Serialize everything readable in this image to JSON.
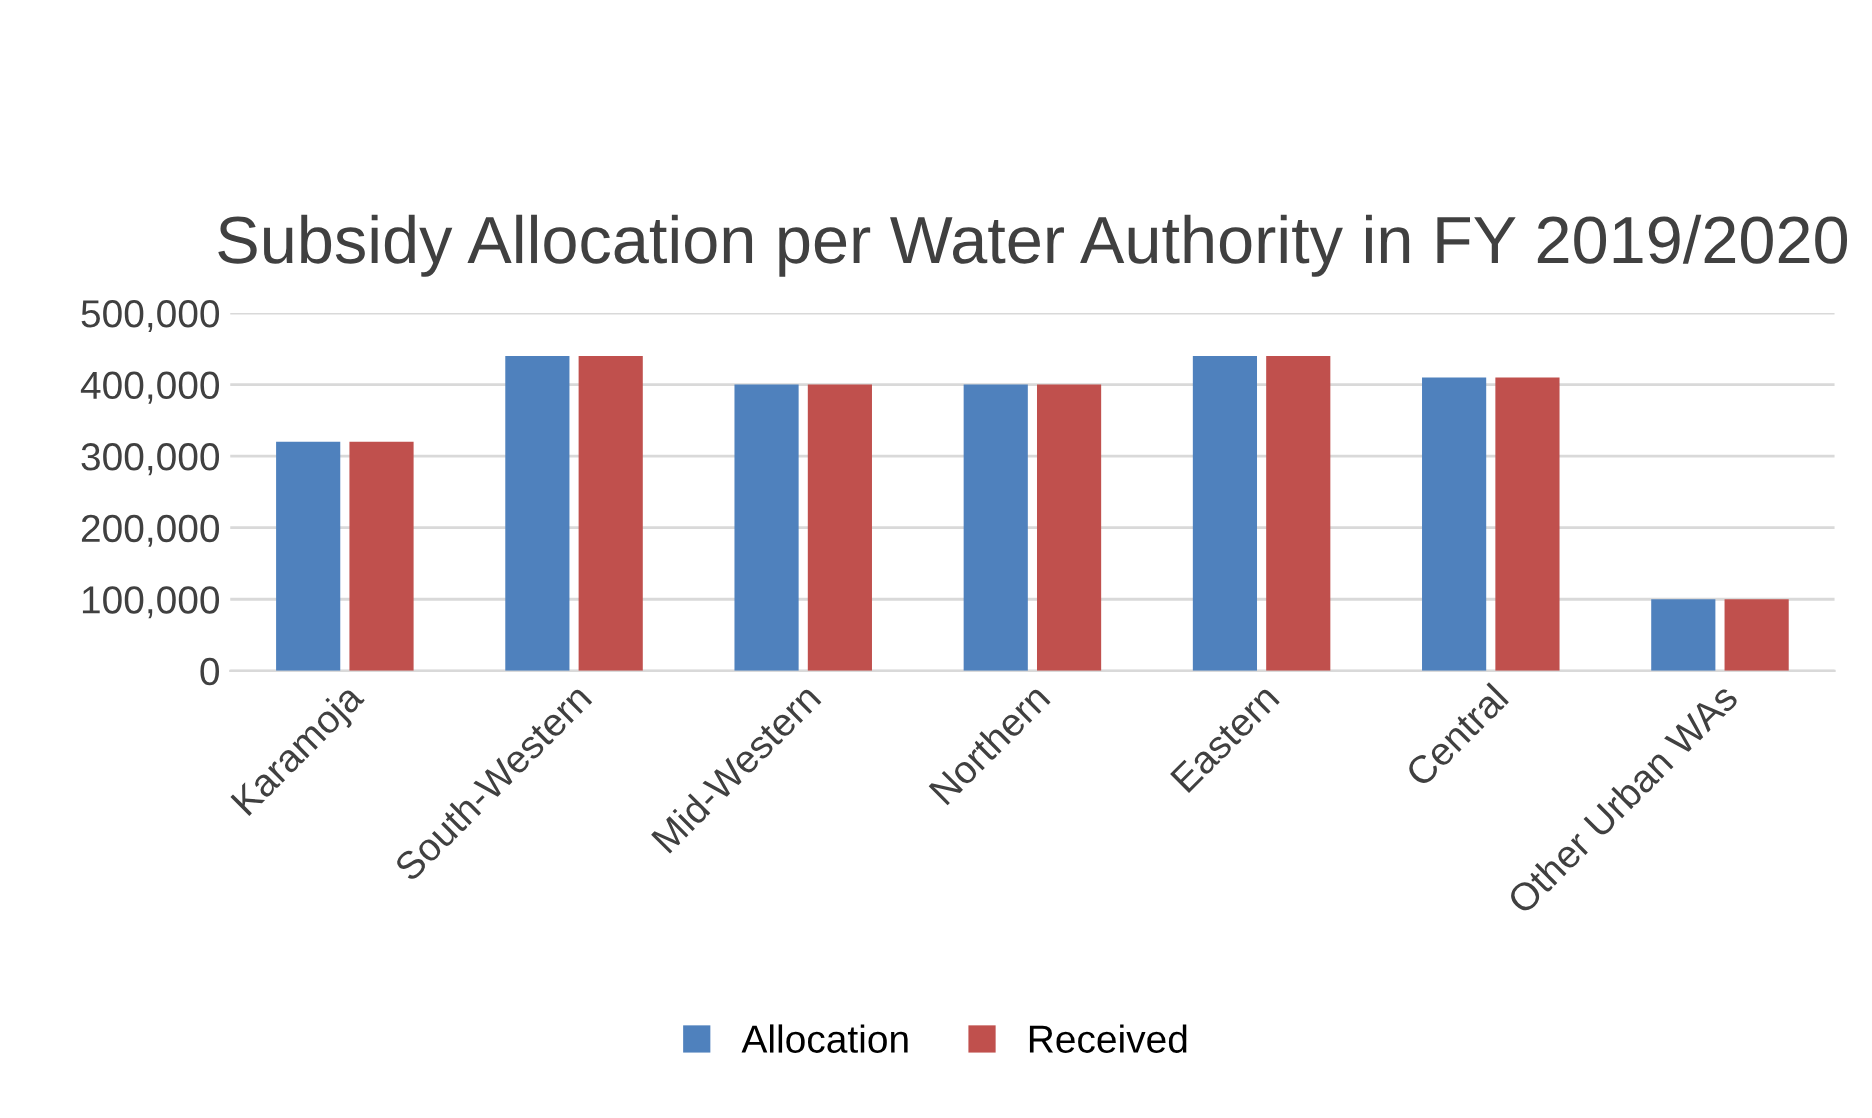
{
  "chart_data": {
    "type": "bar",
    "title": "Subsidy Allocation per Water Authority in FY 2019/2020",
    "categories": [
      "Karamoja",
      "South-Western",
      "Mid-Western",
      "Northern",
      "Eastern",
      "Central",
      "Other Urban WAs"
    ],
    "series": [
      {
        "name": "Allocation",
        "color": "#4f81bd",
        "values": [
          320000,
          440000,
          400000,
          400000,
          440000,
          410000,
          100000
        ]
      },
      {
        "name": "Received",
        "color": "#c0504d",
        "values": [
          320000,
          440000,
          400000,
          400000,
          440000,
          410000,
          100000
        ]
      }
    ],
    "ylim": [
      0,
      500000
    ],
    "yticks": [
      0,
      {
        "value": 100000,
        "label": "100,000"
      },
      {
        "value": 200000,
        "label": "200,000"
      },
      {
        "value": 300000,
        "label": "300,000"
      },
      {
        "value": 400000,
        "label": "400,000"
      },
      {
        "value": 500000,
        "label": "500,000"
      }
    ],
    "grid": "y",
    "legend": "bottom"
  }
}
